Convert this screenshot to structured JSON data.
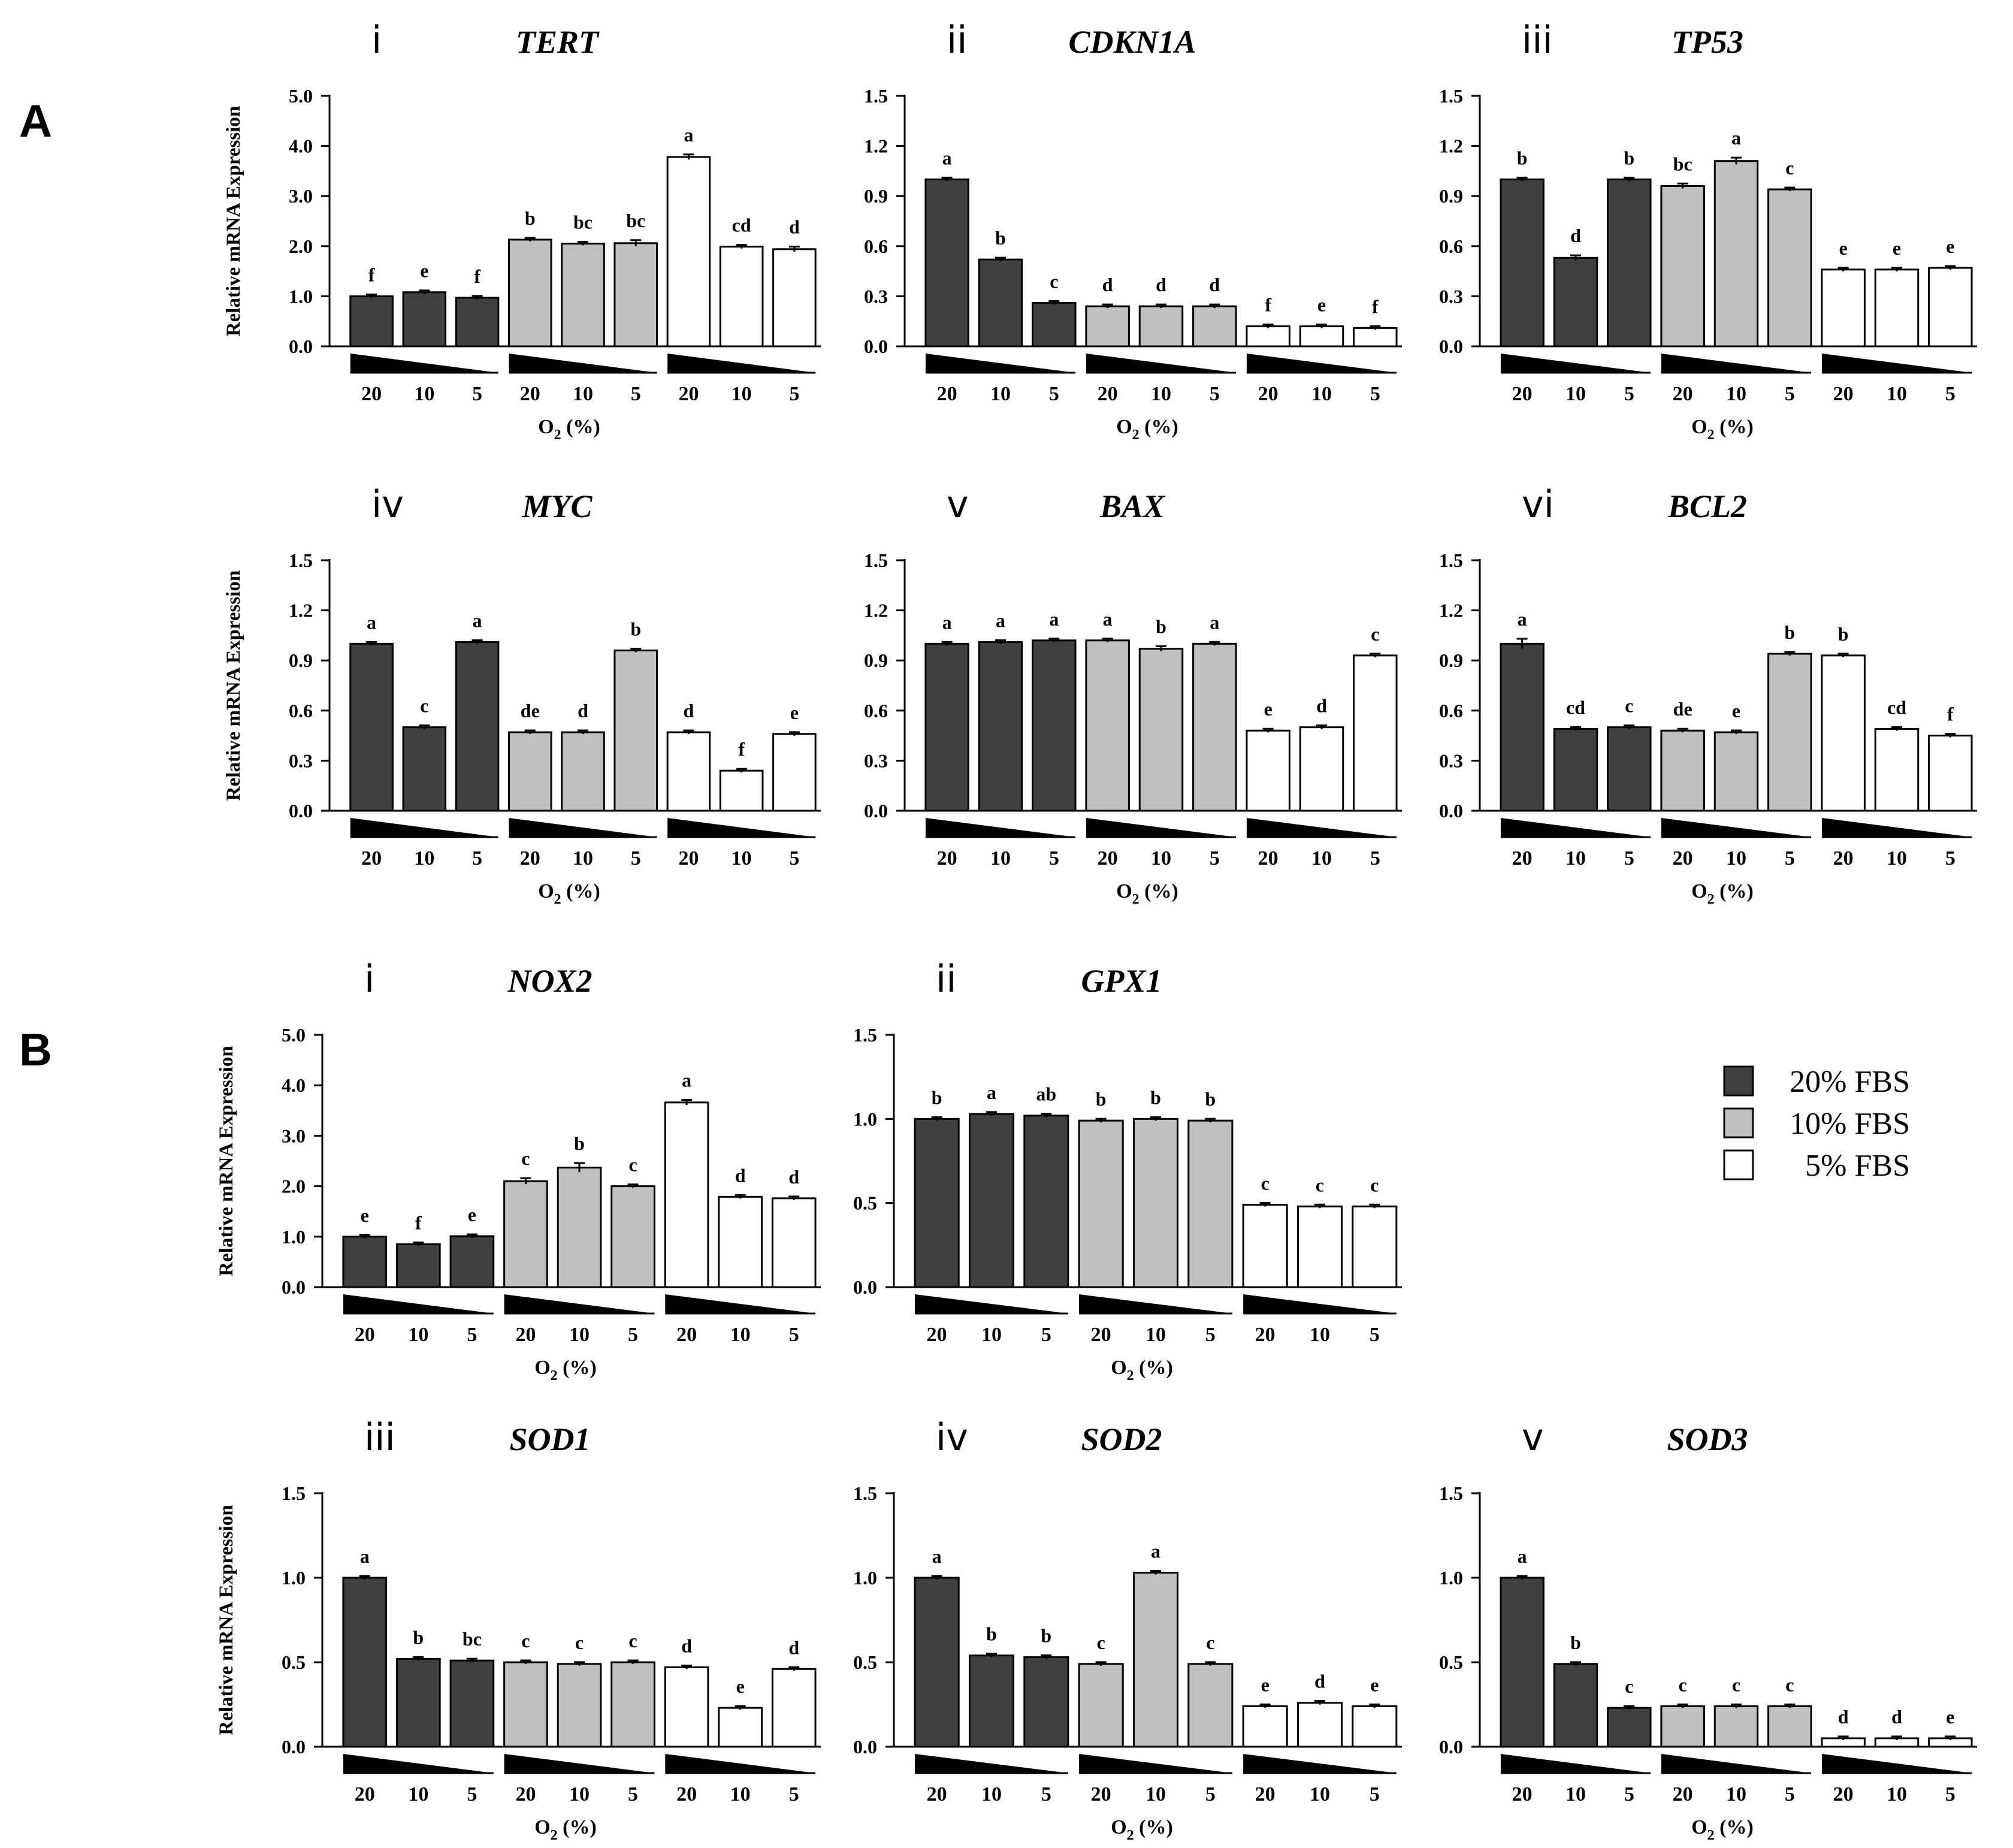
{
  "labels": {
    "A": "A",
    "B": "B"
  },
  "colors": {
    "fbs20": "#404040",
    "fbs10": "#c0c0c0",
    "fbs5": "#ffffff",
    "stroke": "#000000"
  },
  "legend": [
    {
      "label": "20% FBS",
      "color": "#404040"
    },
    {
      "label": "10% FBS",
      "color": "#c0c0c0"
    },
    {
      "label": "5% FBS",
      "color": "#ffffff"
    }
  ],
  "chart_data": [
    {
      "type": "bar",
      "panel": "A",
      "numeral": "i",
      "title": "TERT",
      "ylabel": "Relative mRNA Expression",
      "ylim": [
        0,
        5
      ],
      "yticks": [
        "0.0",
        "1.0",
        "2.0",
        "3.0",
        "4.0",
        "5.0"
      ],
      "xlabel": "O2 (%)",
      "categories": [
        "20",
        "10",
        "5"
      ],
      "series": [
        {
          "name": "20% FBS",
          "values": [
            1.0,
            1.08,
            0.97
          ],
          "errors": [
            0.03,
            0.03,
            0.02
          ],
          "sig": [
            "f",
            "e",
            "f"
          ]
        },
        {
          "name": "10% FBS",
          "values": [
            2.13,
            2.05,
            2.06
          ],
          "errors": [
            0.03,
            0.02,
            0.06
          ],
          "sig": [
            "b",
            "bc",
            "bc"
          ]
        },
        {
          "name": "5% FBS",
          "values": [
            3.78,
            1.99,
            1.94
          ],
          "errors": [
            0.05,
            0.03,
            0.05
          ],
          "sig": [
            "a",
            "cd",
            "d"
          ]
        }
      ]
    },
    {
      "type": "bar",
      "panel": "A",
      "numeral": "ii",
      "title": "CDKN1A",
      "ylabel": "",
      "ylim": [
        0,
        1.5
      ],
      "yticks": [
        "0.0",
        "0.3",
        "0.6",
        "0.9",
        "1.2",
        "1.5"
      ],
      "xlabel": "O2 (%)",
      "categories": [
        "20",
        "10",
        "5"
      ],
      "series": [
        {
          "name": "20% FBS",
          "values": [
            1.0,
            0.52,
            0.26
          ],
          "errors": [
            0.01,
            0.01,
            0.005
          ],
          "sig": [
            "a",
            "b",
            "c"
          ]
        },
        {
          "name": "10% FBS",
          "values": [
            0.24,
            0.24,
            0.24
          ],
          "errors": [
            0.005,
            0.005,
            0.005
          ],
          "sig": [
            "d",
            "d",
            "d"
          ]
        },
        {
          "name": "5% FBS",
          "values": [
            0.12,
            0.12,
            0.11
          ],
          "errors": [
            0.003,
            0.003,
            0.003
          ],
          "sig": [
            "f",
            "e",
            "f"
          ]
        }
      ]
    },
    {
      "type": "bar",
      "panel": "A",
      "numeral": "iii",
      "title": "TP53",
      "ylabel": "",
      "ylim": [
        0,
        1.5
      ],
      "yticks": [
        "0.0",
        "0.3",
        "0.6",
        "0.9",
        "1.2",
        "1.5"
      ],
      "xlabel": "O2 (%)",
      "categories": [
        "20",
        "10",
        "5"
      ],
      "series": [
        {
          "name": "20% FBS",
          "values": [
            1.0,
            0.53,
            1.0
          ],
          "errors": [
            0.01,
            0.015,
            0.01
          ],
          "sig": [
            "b",
            "d",
            "b"
          ]
        },
        {
          "name": "10% FBS",
          "values": [
            0.96,
            1.11,
            0.94
          ],
          "errors": [
            0.015,
            0.02,
            0.01
          ],
          "sig": [
            "bc",
            "a",
            "c"
          ]
        },
        {
          "name": "5% FBS",
          "values": [
            0.46,
            0.46,
            0.47
          ],
          "errors": [
            0.005,
            0.005,
            0.005
          ],
          "sig": [
            "e",
            "e",
            "e"
          ]
        }
      ]
    },
    {
      "type": "bar",
      "panel": "A",
      "numeral": "iv",
      "title": "MYC",
      "ylabel": "Relative mRNA Expression",
      "ylim": [
        0,
        1.5
      ],
      "yticks": [
        "0.0",
        "0.3",
        "0.6",
        "0.9",
        "1.2",
        "1.5"
      ],
      "xlabel": "O2 (%)",
      "categories": [
        "20",
        "10",
        "5"
      ],
      "series": [
        {
          "name": "20% FBS",
          "values": [
            1.0,
            0.5,
            1.01
          ],
          "errors": [
            0.005,
            0.005,
            0.005
          ],
          "sig": [
            "a",
            "c",
            "a"
          ]
        },
        {
          "name": "10% FBS",
          "values": [
            0.47,
            0.47,
            0.96
          ],
          "errors": [
            0.005,
            0.005,
            0.005
          ],
          "sig": [
            "de",
            "d",
            "b"
          ]
        },
        {
          "name": "5% FBS",
          "values": [
            0.47,
            0.24,
            0.46
          ],
          "errors": [
            0.01,
            0.005,
            0.005
          ],
          "sig": [
            "d",
            "f",
            "e"
          ]
        }
      ]
    },
    {
      "type": "bar",
      "panel": "A",
      "numeral": "v",
      "title": "BAX",
      "ylabel": "",
      "ylim": [
        0,
        1.5
      ],
      "yticks": [
        "0.0",
        "0.3",
        "0.6",
        "0.9",
        "1.2",
        "1.5"
      ],
      "xlabel": "O2 (%)",
      "categories": [
        "20",
        "10",
        "5"
      ],
      "series": [
        {
          "name": "20% FBS",
          "values": [
            1.0,
            1.01,
            1.02
          ],
          "errors": [
            0.005,
            0.01,
            0.005
          ],
          "sig": [
            "a",
            "a",
            "a"
          ]
        },
        {
          "name": "10% FBS",
          "values": [
            1.02,
            0.97,
            1.0
          ],
          "errors": [
            0.01,
            0.015,
            0.005
          ],
          "sig": [
            "a",
            "b",
            "a"
          ]
        },
        {
          "name": "5% FBS",
          "values": [
            0.48,
            0.5,
            0.93
          ],
          "errors": [
            0.01,
            0.005,
            0.005
          ],
          "sig": [
            "e",
            "d",
            "c"
          ]
        }
      ]
    },
    {
      "type": "bar",
      "panel": "A",
      "numeral": "vi",
      "title": "BCL2",
      "ylabel": "",
      "ylim": [
        0,
        1.5
      ],
      "yticks": [
        "0.0",
        "0.3",
        "0.6",
        "0.9",
        "1.2",
        "1.5"
      ],
      "xlabel": "O2 (%)",
      "categories": [
        "20",
        "10",
        "5"
      ],
      "series": [
        {
          "name": "20% FBS",
          "values": [
            1.0,
            0.49,
            0.5
          ],
          "errors": [
            0.03,
            0.005,
            0.005
          ],
          "sig": [
            "a",
            "cd",
            "c"
          ]
        },
        {
          "name": "10% FBS",
          "values": [
            0.48,
            0.47,
            0.94
          ],
          "errors": [
            0.005,
            0.005,
            0.005
          ],
          "sig": [
            "de",
            "e",
            "b"
          ]
        },
        {
          "name": "5% FBS",
          "values": [
            0.93,
            0.49,
            0.45
          ],
          "errors": [
            0.01,
            0.01,
            0.005
          ],
          "sig": [
            "b",
            "cd",
            "f"
          ]
        }
      ]
    },
    {
      "type": "bar",
      "panel": "B",
      "numeral": "i",
      "title": "NOX2",
      "ylabel": "Relative mRNA Expression",
      "ylim": [
        0,
        5
      ],
      "yticks": [
        "0.0",
        "1.0",
        "2.0",
        "3.0",
        "4.0",
        "5.0"
      ],
      "xlabel": "O2 (%)",
      "categories": [
        "20",
        "10",
        "5"
      ],
      "series": [
        {
          "name": "20% FBS",
          "values": [
            1.0,
            0.85,
            1.01
          ],
          "errors": [
            0.03,
            0.02,
            0.02
          ],
          "sig": [
            "e",
            "f",
            "e"
          ]
        },
        {
          "name": "10% FBS",
          "values": [
            2.1,
            2.37,
            2.0
          ],
          "errors": [
            0.06,
            0.09,
            0.03
          ],
          "sig": [
            "c",
            "b",
            "c"
          ]
        },
        {
          "name": "5% FBS",
          "values": [
            3.66,
            1.79,
            1.76
          ],
          "errors": [
            0.05,
            0.02,
            0.02
          ],
          "sig": [
            "a",
            "d",
            "d"
          ]
        }
      ]
    },
    {
      "type": "bar",
      "panel": "B",
      "numeral": "ii",
      "title": "GPX1",
      "ylabel": "",
      "ylim": [
        0,
        1.5
      ],
      "yticks": [
        "0.0",
        "0.5",
        "1.0",
        "1.5"
      ],
      "xlabel": "O2 (%)",
      "categories": [
        "20",
        "10",
        "5"
      ],
      "series": [
        {
          "name": "20% FBS",
          "values": [
            1.0,
            1.03,
            1.02
          ],
          "errors": [
            0.005,
            0.01,
            0.01
          ],
          "sig": [
            "b",
            "a",
            "ab"
          ]
        },
        {
          "name": "10% FBS",
          "values": [
            0.99,
            1.0,
            0.99
          ],
          "errors": [
            0.01,
            0.01,
            0.01
          ],
          "sig": [
            "b",
            "b",
            "b"
          ]
        },
        {
          "name": "5% FBS",
          "values": [
            0.49,
            0.48,
            0.48
          ],
          "errors": [
            0.01,
            0.005,
            0.005
          ],
          "sig": [
            "c",
            "c",
            "c"
          ]
        }
      ]
    },
    {
      "type": "bar",
      "panel": "B",
      "numeral": "iii",
      "title": "SOD1",
      "ylabel": "Relative mRNA Expression",
      "ylim": [
        0,
        1.5
      ],
      "yticks": [
        "0.0",
        "0.5",
        "1.0",
        "1.5"
      ],
      "xlabel": "O2 (%)",
      "categories": [
        "20",
        "10",
        "5"
      ],
      "series": [
        {
          "name": "20% FBS",
          "values": [
            1.0,
            0.52,
            0.51
          ],
          "errors": [
            0.003,
            0.01,
            0.005
          ],
          "sig": [
            "a",
            "b",
            "bc"
          ]
        },
        {
          "name": "10% FBS",
          "values": [
            0.5,
            0.49,
            0.5
          ],
          "errors": [
            0.005,
            0.005,
            0.005
          ],
          "sig": [
            "c",
            "c",
            "c"
          ]
        },
        {
          "name": "5% FBS",
          "values": [
            0.47,
            0.23,
            0.46
          ],
          "errors": [
            0.01,
            0.003,
            0.005
          ],
          "sig": [
            "d",
            "e",
            "d"
          ]
        }
      ]
    },
    {
      "type": "bar",
      "panel": "B",
      "numeral": "iv",
      "title": "SOD2",
      "ylabel": "",
      "ylim": [
        0,
        1.5
      ],
      "yticks": [
        "0.0",
        "0.5",
        "1.0",
        "1.5"
      ],
      "xlabel": "O2 (%)",
      "categories": [
        "20",
        "10",
        "5"
      ],
      "series": [
        {
          "name": "20% FBS",
          "values": [
            1.0,
            0.54,
            0.53
          ],
          "errors": [
            0.003,
            0.005,
            0.005
          ],
          "sig": [
            "a",
            "b",
            "b"
          ]
        },
        {
          "name": "10% FBS",
          "values": [
            0.49,
            1.03,
            0.49
          ],
          "errors": [
            0.005,
            0.01,
            0.005
          ],
          "sig": [
            "c",
            "a",
            "c"
          ]
        },
        {
          "name": "5% FBS",
          "values": [
            0.24,
            0.26,
            0.24
          ],
          "errors": [
            0.003,
            0.005,
            0.003
          ],
          "sig": [
            "e",
            "d",
            "e"
          ]
        }
      ]
    },
    {
      "type": "bar",
      "panel": "B",
      "numeral": "v",
      "title": "SOD3",
      "ylabel": "",
      "ylim": [
        0,
        1.5
      ],
      "yticks": [
        "0.0",
        "0.5",
        "1.0",
        "1.5"
      ],
      "xlabel": "O2 (%)",
      "categories": [
        "20",
        "10",
        "5"
      ],
      "series": [
        {
          "name": "20% FBS",
          "values": [
            1.0,
            0.49,
            0.23
          ],
          "errors": [
            0.003,
            0.01,
            0.005
          ],
          "sig": [
            "a",
            "b",
            "c"
          ]
        },
        {
          "name": "10% FBS",
          "values": [
            0.24,
            0.24,
            0.24
          ],
          "errors": [
            0.003,
            0.003,
            0.003
          ],
          "sig": [
            "c",
            "c",
            "c"
          ]
        },
        {
          "name": "5% FBS",
          "values": [
            0.05,
            0.05,
            0.05
          ],
          "errors": [
            0.002,
            0.002,
            0.002
          ],
          "sig": [
            "d",
            "d",
            "e"
          ]
        }
      ]
    }
  ]
}
